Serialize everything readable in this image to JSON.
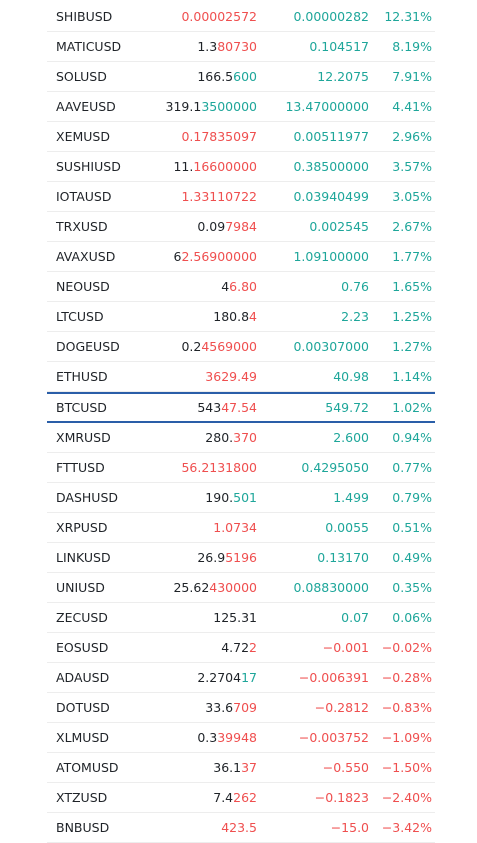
{
  "colors": {
    "up": "#1ea69a",
    "down": "#ef4f4f",
    "text": "#1f2328",
    "selected_border": "#2a5ea8"
  },
  "selected_symbol": "BTCUSD",
  "rows": [
    {
      "symbol": "SHIBUSD",
      "price_base": "",
      "price_hl": "0.00002572",
      "price_dir": "down",
      "change": "0.00000282",
      "change_dir": "up",
      "pct": "12.31%",
      "pct_dir": "up"
    },
    {
      "symbol": "MATICUSD",
      "price_base": "1.3",
      "price_hl": "80730",
      "price_dir": "down",
      "change": "0.104517",
      "change_dir": "up",
      "pct": "8.19%",
      "pct_dir": "up"
    },
    {
      "symbol": "SOLUSD",
      "price_base": "166.5",
      "price_hl": "600",
      "price_dir": "up",
      "change": "12.2075",
      "change_dir": "up",
      "pct": "7.91%",
      "pct_dir": "up"
    },
    {
      "symbol": "AAVEUSD",
      "price_base": "319.1",
      "price_hl": "3500000",
      "price_dir": "up",
      "change": "13.47000000",
      "change_dir": "up",
      "pct": "4.41%",
      "pct_dir": "up"
    },
    {
      "symbol": "XEMUSD",
      "price_base": "",
      "price_hl": "0.17835097",
      "price_dir": "down",
      "change": "0.00511977",
      "change_dir": "up",
      "pct": "2.96%",
      "pct_dir": "up"
    },
    {
      "symbol": "SUSHIUSD",
      "price_base": "11.",
      "price_hl": "16600000",
      "price_dir": "down",
      "change": "0.38500000",
      "change_dir": "up",
      "pct": "3.57%",
      "pct_dir": "up"
    },
    {
      "symbol": "IOTAUSD",
      "price_base": "",
      "price_hl": "1.33110722",
      "price_dir": "down",
      "change": "0.03940499",
      "change_dir": "up",
      "pct": "3.05%",
      "pct_dir": "up"
    },
    {
      "symbol": "TRXUSD",
      "price_base": "0.09",
      "price_hl": "7984",
      "price_dir": "down",
      "change": "0.002545",
      "change_dir": "up",
      "pct": "2.67%",
      "pct_dir": "up"
    },
    {
      "symbol": "AVAXUSD",
      "price_base": "6",
      "price_hl": "2.56900000",
      "price_dir": "down",
      "change": "1.09100000",
      "change_dir": "up",
      "pct": "1.77%",
      "pct_dir": "up"
    },
    {
      "symbol": "NEOUSD",
      "price_base": "4",
      "price_hl": "6.80",
      "price_dir": "down",
      "change": "0.76",
      "change_dir": "up",
      "pct": "1.65%",
      "pct_dir": "up"
    },
    {
      "symbol": "LTCUSD",
      "price_base": "180.8",
      "price_hl": "4",
      "price_dir": "down",
      "change": "2.23",
      "change_dir": "up",
      "pct": "1.25%",
      "pct_dir": "up"
    },
    {
      "symbol": "DOGEUSD",
      "price_base": "0.2",
      "price_hl": "4569000",
      "price_dir": "down",
      "change": "0.00307000",
      "change_dir": "up",
      "pct": "1.27%",
      "pct_dir": "up"
    },
    {
      "symbol": "ETHUSD",
      "price_base": "",
      "price_hl": "3629.49",
      "price_dir": "down",
      "change": "40.98",
      "change_dir": "up",
      "pct": "1.14%",
      "pct_dir": "up"
    },
    {
      "symbol": "BTCUSD",
      "price_base": "543",
      "price_hl": "47.54",
      "price_dir": "down",
      "change": "549.72",
      "change_dir": "up",
      "pct": "1.02%",
      "pct_dir": "up"
    },
    {
      "symbol": "XMRUSD",
      "price_base": "280.",
      "price_hl": "370",
      "price_dir": "down",
      "change": "2.600",
      "change_dir": "up",
      "pct": "0.94%",
      "pct_dir": "up"
    },
    {
      "symbol": "FTTUSD",
      "price_base": "",
      "price_hl": "56.2131800",
      "price_dir": "down",
      "change": "0.4295050",
      "change_dir": "up",
      "pct": "0.77%",
      "pct_dir": "up"
    },
    {
      "symbol": "DASHUSD",
      "price_base": "190.",
      "price_hl": "501",
      "price_dir": "up",
      "change": "1.499",
      "change_dir": "up",
      "pct": "0.79%",
      "pct_dir": "up"
    },
    {
      "symbol": "XRPUSD",
      "price_base": "",
      "price_hl": "1.0734",
      "price_dir": "down",
      "change": "0.0055",
      "change_dir": "up",
      "pct": "0.51%",
      "pct_dir": "up"
    },
    {
      "symbol": "LINKUSD",
      "price_base": "26.9",
      "price_hl": "5196",
      "price_dir": "down",
      "change": "0.13170",
      "change_dir": "up",
      "pct": "0.49%",
      "pct_dir": "up"
    },
    {
      "symbol": "UNIUSD",
      "price_base": "25.62",
      "price_hl": "430000",
      "price_dir": "down",
      "change": "0.08830000",
      "change_dir": "up",
      "pct": "0.35%",
      "pct_dir": "up"
    },
    {
      "symbol": "ZECUSD",
      "price_base": "125.31",
      "price_hl": "",
      "price_dir": "neutral",
      "change": "0.07",
      "change_dir": "up",
      "pct": "0.06%",
      "pct_dir": "up"
    },
    {
      "symbol": "EOSUSD",
      "price_base": "4.72",
      "price_hl": "2",
      "price_dir": "down",
      "change": "−0.001",
      "change_dir": "down",
      "pct": "−0.02%",
      "pct_dir": "down"
    },
    {
      "symbol": "ADAUSD",
      "price_base": "2.2704",
      "price_hl": "17",
      "price_dir": "up",
      "change": "−0.006391",
      "change_dir": "down",
      "pct": "−0.28%",
      "pct_dir": "down"
    },
    {
      "symbol": "DOTUSD",
      "price_base": "33.6",
      "price_hl": "709",
      "price_dir": "down",
      "change": "−0.2812",
      "change_dir": "down",
      "pct": "−0.83%",
      "pct_dir": "down"
    },
    {
      "symbol": "XLMUSD",
      "price_base": "0.3",
      "price_hl": "39948",
      "price_dir": "down",
      "change": "−0.003752",
      "change_dir": "down",
      "pct": "−1.09%",
      "pct_dir": "down"
    },
    {
      "symbol": "ATOMUSD",
      "price_base": "36.1",
      "price_hl": "37",
      "price_dir": "down",
      "change": "−0.550",
      "change_dir": "down",
      "pct": "−1.50%",
      "pct_dir": "down"
    },
    {
      "symbol": "XTZUSD",
      "price_base": "7.4",
      "price_hl": "262",
      "price_dir": "down",
      "change": "−0.1823",
      "change_dir": "down",
      "pct": "−2.40%",
      "pct_dir": "down"
    },
    {
      "symbol": "BNBUSD",
      "price_base": "",
      "price_hl": "423.5",
      "price_dir": "down",
      "change": "−15.0",
      "change_dir": "down",
      "pct": "−3.42%",
      "pct_dir": "down"
    }
  ]
}
